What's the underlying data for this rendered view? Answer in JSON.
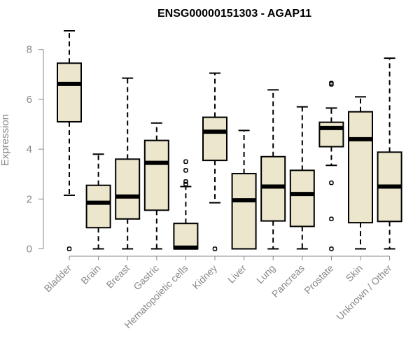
{
  "chart_data": {
    "type": "boxplot",
    "title": "ENSG00000151303 - AGAP11",
    "xlabel": "",
    "ylabel": "Expression",
    "ylim": [
      0,
      8.9
    ],
    "yticks": [
      0,
      2,
      4,
      6,
      8
    ],
    "grid": false,
    "box_color": "#ece6cc",
    "categories": [
      "Bladder",
      "Brain",
      "Breast",
      "Gastric",
      "Hematopoietic cells",
      "Kidney",
      "Liver",
      "Lung",
      "Pancreas",
      "Prostate",
      "Skin",
      "Unknown / Other"
    ],
    "boxes": [
      {
        "min": 2.15,
        "q1": 5.1,
        "median": 6.62,
        "q3": 7.45,
        "max": 8.75,
        "outliers": [
          0
        ]
      },
      {
        "min": 0,
        "q1": 0.85,
        "median": 1.85,
        "q3": 2.55,
        "max": 3.8,
        "outliers": []
      },
      {
        "min": 0,
        "q1": 1.2,
        "median": 2.1,
        "q3": 3.6,
        "max": 6.85,
        "outliers": []
      },
      {
        "min": 0,
        "q1": 1.55,
        "median": 3.45,
        "q3": 4.35,
        "max": 5.05,
        "outliers": []
      },
      {
        "min": 0,
        "q1": 0,
        "median": 0.05,
        "q3": 1.02,
        "max": 2.5,
        "outliers": [
          2.6,
          2.7,
          3.15,
          3.5
        ]
      },
      {
        "min": 1.85,
        "q1": 3.55,
        "median": 4.7,
        "q3": 5.28,
        "max": 7.05,
        "outliers": [
          0
        ]
      },
      {
        "min": 0,
        "q1": 0,
        "median": 1.95,
        "q3": 3.02,
        "max": 4.75,
        "outliers": []
      },
      {
        "min": 0,
        "q1": 1.12,
        "median": 2.5,
        "q3": 3.7,
        "max": 6.38,
        "outliers": []
      },
      {
        "min": 0,
        "q1": 0.9,
        "median": 2.2,
        "q3": 3.15,
        "max": 5.7,
        "outliers": []
      },
      {
        "min": 3.35,
        "q1": 4.1,
        "median": 4.85,
        "q3": 5.08,
        "max": 5.65,
        "outliers": [
          0,
          1.2,
          2.65,
          6.6,
          6.65
        ]
      },
      {
        "min": 0,
        "q1": 1.05,
        "median": 4.4,
        "q3": 5.5,
        "max": 6.1,
        "outliers": []
      },
      {
        "min": 0,
        "q1": 1.1,
        "median": 2.5,
        "q3": 3.88,
        "max": 7.65,
        "outliers": []
      }
    ]
  }
}
